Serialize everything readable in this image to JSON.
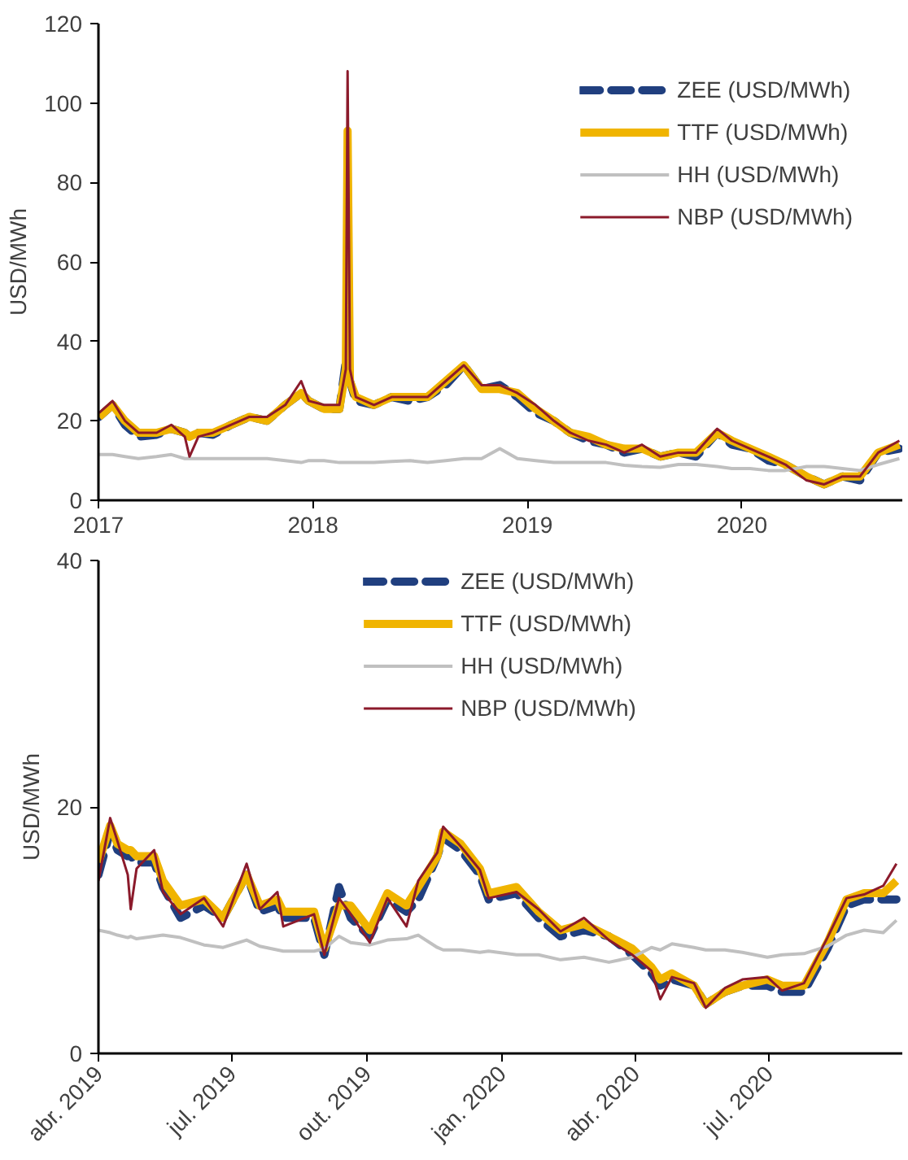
{
  "chart_data": [
    {
      "type": "line",
      "ylabel": "USD/MWh",
      "legend": "top right",
      "grid": false,
      "xlim": [
        "2017-01-01",
        "2020-09-30"
      ],
      "xticks": [
        {
          "value": "2017-01-01",
          "label": "2017"
        },
        {
          "value": "2018-01-01",
          "label": "2018"
        },
        {
          "value": "2019-01-01",
          "label": "2019"
        },
        {
          "value": "2020-01-01",
          "label": "2020"
        }
      ],
      "ylim": [
        0,
        120
      ],
      "yticks": [
        0,
        20,
        40,
        60,
        80,
        100,
        120
      ],
      "x": [
        "2017-01-02",
        "2017-01-25",
        "2017-02-15",
        "2017-03-10",
        "2017-04-10",
        "2017-05-05",
        "2017-05-28",
        "2017-06-05",
        "2017-06-20",
        "2017-07-15",
        "2017-08-15",
        "2017-09-15",
        "2017-10-15",
        "2017-11-15",
        "2017-12-12",
        "2017-12-25",
        "2018-01-20",
        "2018-02-15",
        "2018-02-26",
        "2018-03-01",
        "2018-03-05",
        "2018-03-15",
        "2018-04-15",
        "2018-05-15",
        "2018-06-15",
        "2018-07-15",
        "2018-08-15",
        "2018-09-15",
        "2018-10-15",
        "2018-11-15",
        "2018-12-15",
        "2019-01-15",
        "2019-02-15",
        "2019-03-15",
        "2019-04-15",
        "2019-05-15",
        "2019-06-15",
        "2019-07-15",
        "2019-08-15",
        "2019-09-15",
        "2019-10-15",
        "2019-11-20",
        "2019-12-15",
        "2020-01-15",
        "2020-02-15",
        "2020-03-15",
        "2020-04-20",
        "2020-05-20",
        "2020-06-20",
        "2020-07-20",
        "2020-08-20",
        "2020-09-25"
      ],
      "series": [
        {
          "name": "ZEE (USD/MWh)",
          "color": "#203f7f",
          "line_style": "dashed",
          "values": [
            21,
            24,
            19,
            16,
            16.5,
            18,
            17,
            16,
            17,
            16.5,
            19,
            21,
            20,
            24,
            27,
            25,
            23,
            23,
            35,
            38,
            30,
            25,
            24,
            26,
            25,
            26,
            29,
            34,
            28,
            29,
            26,
            22,
            20,
            17,
            15,
            14,
            12,
            13,
            11,
            12,
            11,
            17,
            14,
            13,
            10,
            9,
            6,
            4,
            6,
            5,
            12,
            13
          ]
        },
        {
          "name": "TTF (USD/MWh)",
          "color": "#f0b400",
          "line_style": "solid",
          "values": [
            21,
            24,
            20,
            17,
            17,
            18,
            17,
            16,
            17,
            17,
            19,
            21,
            20,
            24,
            27,
            25,
            23,
            23,
            33,
            93,
            30,
            26,
            24,
            26,
            26,
            26,
            30,
            34,
            28,
            28,
            27,
            23,
            20,
            17,
            16,
            14,
            13,
            13,
            11,
            12,
            12,
            17,
            15,
            13,
            11,
            9,
            6,
            4,
            6,
            6,
            12,
            14
          ]
        },
        {
          "name": "HH (USD/MWh)",
          "color": "#c0c0c0",
          "line_style": "solid",
          "values": [
            11.5,
            11.5,
            11,
            10.5,
            11,
            11.5,
            10.5,
            10.5,
            10.5,
            10.5,
            10.5,
            10.5,
            10.5,
            10,
            9.5,
            10,
            10,
            9.5,
            9.5,
            9.5,
            9.5,
            9.5,
            9.5,
            9.8,
            10,
            9.5,
            10,
            10.5,
            10.5,
            13,
            10.5,
            10,
            9.5,
            9.5,
            9.5,
            9.5,
            8.8,
            8.5,
            8.3,
            9,
            9,
            8.5,
            8,
            8,
            7.5,
            7.5,
            8.5,
            8.5,
            8,
            7.5,
            9,
            10.5
          ]
        },
        {
          "name": "NBP (USD/MWh)",
          "color": "#8b1a2b",
          "line_style": "solid",
          "values": [
            22,
            25,
            20,
            17,
            17,
            19,
            16,
            11,
            16,
            17,
            19,
            21,
            21,
            24,
            30,
            25,
            24,
            24,
            33,
            108,
            33,
            26,
            24,
            26,
            26,
            26,
            30,
            34,
            29,
            29,
            27,
            24,
            20,
            17,
            15,
            14,
            12,
            14,
            11,
            12,
            12,
            18,
            15,
            13,
            11,
            9,
            5,
            4,
            6,
            6,
            12,
            15
          ]
        }
      ]
    },
    {
      "type": "line",
      "ylabel": "USD/MWh",
      "legend": "top",
      "grid": false,
      "xlim": [
        "2019-04-01",
        "2020-09-30"
      ],
      "xticks": [
        {
          "value": "2019-04-01",
          "label": "abr. 2019"
        },
        {
          "value": "2019-07-01",
          "label": "jul. 2019"
        },
        {
          "value": "2019-10-01",
          "label": "out. 2019"
        },
        {
          "value": "2020-01-01",
          "label": "jan. 2020"
        },
        {
          "value": "2020-04-01",
          "label": "abr. 2020"
        },
        {
          "value": "2020-07-01",
          "label": "jul. 2020"
        }
      ],
      "ylim": [
        0,
        40
      ],
      "yticks": [
        0,
        20,
        40
      ],
      "x": [
        "2019-04-01",
        "2019-04-09",
        "2019-04-14",
        "2019-04-21",
        "2019-04-23",
        "2019-04-27",
        "2019-05-09",
        "2019-05-15",
        "2019-05-27",
        "2019-06-12",
        "2019-06-25",
        "2019-07-11",
        "2019-07-20",
        "2019-08-01",
        "2019-08-05",
        "2019-08-26",
        "2019-09-02",
        "2019-09-12",
        "2019-09-20",
        "2019-10-03",
        "2019-10-15",
        "2019-10-28",
        "2019-11-05",
        "2019-11-18",
        "2019-11-22",
        "2019-12-04",
        "2019-12-17",
        "2019-12-23",
        "2020-01-11",
        "2020-01-26",
        "2020-02-10",
        "2020-02-26",
        "2020-03-14",
        "2020-03-30",
        "2020-04-12",
        "2020-04-18",
        "2020-04-26",
        "2020-05-11",
        "2020-05-19",
        "2020-06-01",
        "2020-06-13",
        "2020-06-30",
        "2020-07-10",
        "2020-07-25",
        "2020-08-10",
        "2020-08-23",
        "2020-09-04",
        "2020-09-17",
        "2020-09-26"
      ],
      "series": [
        {
          "name": "ZEE (USD/MWh)",
          "color": "#203f7f",
          "line_style": "dashed",
          "values": [
            14.5,
            18.0,
            16.5,
            16.0,
            16.0,
            15.5,
            15.5,
            13.5,
            11.0,
            12.0,
            11.0,
            14.5,
            11.5,
            12.0,
            11.0,
            11.0,
            8.0,
            13.5,
            11.0,
            9.5,
            12.5,
            11.5,
            12.5,
            16.0,
            17.5,
            16.5,
            14.5,
            12.5,
            13.0,
            11.0,
            9.5,
            10.0,
            9.5,
            8.0,
            6.5,
            5.5,
            6.0,
            5.5,
            4.0,
            5.0,
            5.5,
            5.5,
            5.0,
            5.0,
            8.5,
            12.0,
            12.5,
            12.5,
            12.5
          ]
        },
        {
          "name": "TTF (USD/MWh)",
          "color": "#f0b400",
          "line_style": "solid",
          "values": [
            15.5,
            18.5,
            17.0,
            16.5,
            16.5,
            16.0,
            16.0,
            14.0,
            12.0,
            12.5,
            11.0,
            14.5,
            12.0,
            12.5,
            11.5,
            11.5,
            8.5,
            12.0,
            12.0,
            10.0,
            13.0,
            12.0,
            13.5,
            16.0,
            18.0,
            17.0,
            15.0,
            13.0,
            13.5,
            11.5,
            10.0,
            10.5,
            9.5,
            8.5,
            7.0,
            6.0,
            6.5,
            5.5,
            4.0,
            5.0,
            5.5,
            6.0,
            5.5,
            5.5,
            9.0,
            12.5,
            13.0,
            13.0,
            14.0
          ]
        },
        {
          "name": "HH (USD/MWh)",
          "color": "#c0c0c0",
          "line_style": "solid",
          "values": [
            10.0,
            9.8,
            9.6,
            9.4,
            9.5,
            9.3,
            9.5,
            9.6,
            9.4,
            8.8,
            8.6,
            9.2,
            8.7,
            8.4,
            8.3,
            8.3,
            8.5,
            9.5,
            9.0,
            8.8,
            9.2,
            9.3,
            9.6,
            8.6,
            8.4,
            8.4,
            8.2,
            8.3,
            8.0,
            8.0,
            7.6,
            7.8,
            7.4,
            7.8,
            8.6,
            8.4,
            8.9,
            8.6,
            8.4,
            8.4,
            8.2,
            7.8,
            8.0,
            8.1,
            8.7,
            9.6,
            10.0,
            9.8,
            10.8
          ]
        },
        {
          "name": "NBP (USD/MWh)",
          "color": "#8b1a2b",
          "line_style": "solid",
          "values": [
            14.0,
            19.1,
            17.2,
            14.5,
            11.7,
            15.0,
            16.5,
            13.1,
            11.3,
            12.6,
            10.3,
            15.4,
            11.7,
            13.1,
            10.3,
            11.3,
            8.0,
            12.6,
            11.3,
            9.0,
            12.6,
            10.3,
            14.0,
            16.3,
            18.4,
            16.8,
            14.9,
            12.6,
            13.1,
            11.7,
            9.9,
            11.0,
            9.2,
            8.0,
            6.7,
            4.4,
            6.2,
            5.7,
            3.7,
            5.3,
            6.0,
            6.2,
            5.1,
            5.7,
            9.4,
            12.6,
            12.9,
            13.6,
            15.4
          ]
        }
      ]
    }
  ]
}
